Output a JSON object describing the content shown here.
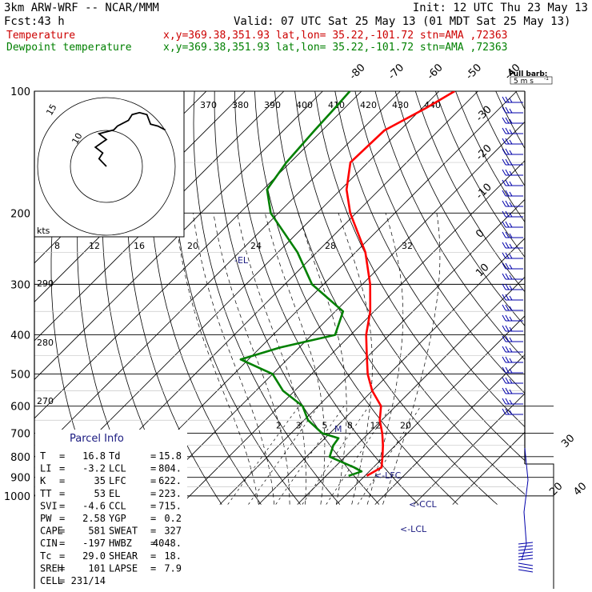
{
  "header": {
    "model": "3km ARW-WRF -- NCAR/MMM",
    "init": "Init: 12 UTC Thu 23 May 13",
    "fcst_label": "Fcst:",
    "fcst_value": "43 h",
    "valid": "Valid: 07 UTC Sat 25 May 13 (01 MDT Sat 25 May 13)",
    "temp_label": "Temperature",
    "temp_info": "x,y=369.38,351.93   lat,lon= 35.22,-101.72  stn=AMA ,72363",
    "dew_label": "Dewpoint temperature",
    "dew_info": "x,y=369.38,351.93   lat,lon= 35.22,-101.72  stn=AMA ,72363"
  },
  "colors": {
    "temperature": "#ff0000",
    "dewpoint": "#008000",
    "header_temp": "#cc0000",
    "header_dew": "#008000",
    "parcel_title": "#1a1a80",
    "barbs": "#0000aa"
  },
  "chart_data": {
    "type": "line",
    "diagram": "skew-T log-p",
    "ylabel": "",
    "pressure_ticks": [
      "100",
      "200",
      "300",
      "400",
      "500",
      "600",
      "700",
      "800",
      "900",
      "1000"
    ],
    "isotherm_labels": [
      "-80",
      "-70",
      "-60",
      "-50",
      "-40",
      "-30",
      "-20",
      "-10",
      "0",
      "10",
      "20",
      "30",
      "40"
    ],
    "theta_labels": [
      "370",
      "380",
      "390",
      "400",
      "410",
      "420",
      "430",
      "440"
    ],
    "hodograph_kt_labels": [
      "8",
      "12",
      "16",
      "20",
      "24",
      "28",
      "32"
    ],
    "mixing_ratio_labels": [
      "2",
      "3",
      "5",
      "8",
      "12",
      "20"
    ],
    "dry_adiabat_labels": [
      "290",
      "280",
      "270"
    ],
    "units_label": "kts",
    "levels": {
      "EL": "-EL",
      "LFC": "<-LFC",
      "CCL": "<-CCL",
      "LCL": "<-LCL",
      "M": "M"
    },
    "series": [
      {
        "name": "Temperature",
        "points": [
          [
            892,
            20.5
          ],
          [
            850,
            22.1
          ],
          [
            800,
            19.6
          ],
          [
            750,
            16.8
          ],
          [
            700,
            13.5
          ],
          [
            650,
            9.5
          ],
          [
            600,
            6.2
          ],
          [
            550,
            0.0
          ],
          [
            500,
            -5.5
          ],
          [
            450,
            -10.5
          ],
          [
            400,
            -16.0
          ],
          [
            350,
            -21.0
          ],
          [
            300,
            -28.0
          ],
          [
            250,
            -37.5
          ],
          [
            200,
            -51.5
          ],
          [
            175,
            -58.5
          ],
          [
            150,
            -64.5
          ],
          [
            125,
            -64.0
          ],
          [
            110,
            -59.0
          ],
          [
            100,
            -56.0
          ]
        ]
      },
      {
        "name": "Dewpoint temperature",
        "points": [
          [
            892,
            15.8
          ],
          [
            870,
            18.0
          ],
          [
            850,
            15.0
          ],
          [
            800,
            6.0
          ],
          [
            750,
            4.0
          ],
          [
            720,
            3.5
          ],
          [
            700,
            -2.0
          ],
          [
            650,
            -9.0
          ],
          [
            600,
            -14.0
          ],
          [
            550,
            -23.0
          ],
          [
            500,
            -30.0
          ],
          [
            460,
            -42.0
          ],
          [
            430,
            -35.0
          ],
          [
            400,
            -24.0
          ],
          [
            350,
            -28.0
          ],
          [
            300,
            -43.0
          ],
          [
            250,
            -55.0
          ],
          [
            200,
            -72.0
          ],
          [
            175,
            -79.0
          ],
          [
            150,
            -81.0
          ],
          [
            125,
            -82.0
          ],
          [
            110,
            -82.5
          ],
          [
            100,
            -83.0
          ]
        ]
      }
    ]
  },
  "parcel": {
    "title": "Parcel Info",
    "rows": [
      [
        "T",
        "=",
        "16.8",
        "Td",
        "=",
        "15.8"
      ],
      [
        "LI",
        "=",
        "-3.2",
        "LCL",
        "=",
        "804."
      ],
      [
        "K",
        "=",
        "35",
        "LFC",
        "=",
        "622."
      ],
      [
        "TT",
        "=",
        "53",
        "EL",
        "=",
        "223."
      ],
      [
        "SVI",
        "=",
        "-4.6",
        "CCL",
        "=",
        "715."
      ],
      [
        "PW",
        "=",
        "2.58",
        "YGP",
        "=",
        "0.2"
      ],
      [
        "CAPE",
        "=",
        "581",
        "SWEAT",
        "=",
        "327"
      ],
      [
        "CIN",
        "=",
        "-197",
        "HWBZ",
        "=",
        "4048."
      ],
      [
        "Tc",
        "=",
        "29.0",
        "SHEAR",
        "=",
        "18."
      ],
      [
        "SREH",
        "=",
        "101",
        "LAPSE",
        "=",
        "7.9"
      ],
      [
        "CELL",
        "=",
        "231/14",
        "",
        "",
        ""
      ]
    ]
  },
  "barb_key": {
    "title": "Full barb:",
    "value": "5 m s",
    "exponent": "-1"
  },
  "hodograph": {
    "ring_labels": [
      "15",
      "10"
    ],
    "trace": [
      [
        0,
        0
      ],
      [
        -2,
        4
      ],
      [
        -1,
        7
      ],
      [
        -3,
        10
      ],
      [
        0,
        14
      ],
      [
        -2,
        17
      ],
      [
        2,
        19
      ],
      [
        3,
        21
      ],
      [
        4,
        22
      ],
      [
        6,
        24
      ],
      [
        7,
        27
      ],
      [
        9,
        28
      ],
      [
        11,
        27
      ],
      [
        12,
        22
      ],
      [
        14,
        21
      ],
      [
        16,
        19
      ]
    ]
  }
}
